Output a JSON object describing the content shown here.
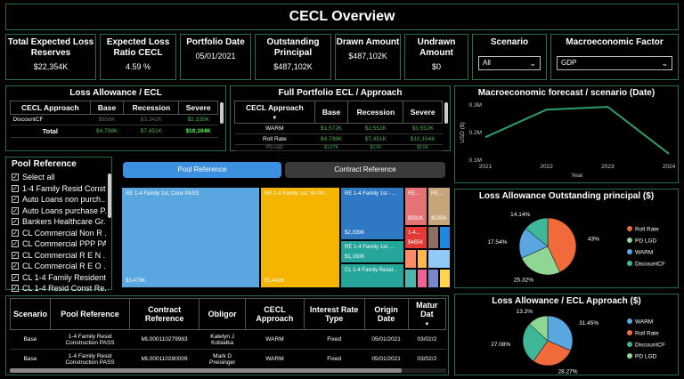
{
  "title": "CECL Overview",
  "kpis": [
    {
      "label": "Total Expected Loss Reserves",
      "value": "$22,354K"
    },
    {
      "label": "Expected Loss Ratio CECL",
      "value": "4.59 %"
    },
    {
      "label": "Portfolio Date",
      "value": "05/01/2021"
    },
    {
      "label": "Outstanding Principal",
      "value": "$487,102K"
    },
    {
      "label": "Drawn Amount",
      "value": "$487,102K"
    },
    {
      "label": "Undrawn Amount",
      "value": "$0"
    }
  ],
  "slicers": {
    "scenario": {
      "label": "Scenario",
      "selected": "All"
    },
    "macro": {
      "label": "Macroeconomic Factor",
      "selected": "GDP"
    }
  },
  "loss_allowance": {
    "title": "Loss Allowance / ECL",
    "headers": [
      "CECL Approach",
      "Base",
      "Recession",
      "Severe"
    ],
    "rows": [
      [
        "DiscountCF",
        "$656K",
        "$3,342K",
        "$2,155K"
      ],
      [
        "Total",
        "$4,798K",
        "$7,451K",
        "$10,104K"
      ]
    ]
  },
  "full_portfolio": {
    "title": "Full Portfolio ECL / Approach",
    "headers": [
      "CECL Approach",
      "Base",
      "Recession",
      "Severe"
    ],
    "rows": [
      [
        "WARM",
        "$1,572K",
        "$2,552K",
        "$3,552K"
      ],
      [
        "Roll Rate",
        "$4,798K",
        "$7,451K",
        "$10,104K"
      ],
      [
        "PD LGD",
        "$1,57K",
        "$2,5K",
        "$3,5K"
      ]
    ]
  },
  "macro_chart": {
    "title": "Macroeconomic forecast / scenario (Date)",
    "chart_data": {
      "type": "line",
      "x": [
        2021,
        2022,
        2023,
        2024
      ],
      "values": [
        0.18,
        0.28,
        0.29,
        0.12
      ],
      "yticks": [
        "0.3M",
        "0.2M",
        "0.1M"
      ],
      "ylim": [
        0.1,
        0.3
      ],
      "xlabel": "Year",
      "ylabel": "USD ($)"
    }
  },
  "pool": {
    "title": "Pool Reference",
    "items": [
      "Select all",
      "1-4 Family Resid Const...",
      "Auto Loans non purch...",
      "Auto Loans purchase P...",
      "Bankers Healthcare Gr...",
      "CL Commercial Non R ...",
      "CL Commercial PPP PA...",
      "CL Commercial R E N ...",
      "CL Commercial R E O ...",
      "CL 1-4 Family Resident...",
      "CL 1-4 Resid Const Re..."
    ]
  },
  "tabs": {
    "pool": "Pool Reference",
    "contract": "Contract Reference"
  },
  "treemap": {
    "blocks": [
      {
        "label": "RE 1-4 Family 1st, Conv PASS",
        "value": "$3,479K",
        "color": "#5aa6e0"
      },
      {
        "label": "RE 1-4 Family 1st, VA PA...",
        "value": "$1,442K",
        "color": "#f4b400"
      },
      {
        "label": "RE 1-4 Family 1st - ...",
        "value": "$2,339K",
        "color": "#2f78c4"
      },
      {
        "label": "RE 1-4 Family 1st-...",
        "value": "$1,160K",
        "color": "#26a69a"
      },
      {
        "label": "CL 1-4 Family Resid...",
        "value": "",
        "color": "#26a69a"
      },
      {
        "label": "RE...",
        "value": "$592K",
        "color": "#e57373"
      },
      {
        "label": "RE...",
        "value": "$535K",
        "color": "#c6a57a"
      },
      {
        "label": "1-4...",
        "value": "$465K",
        "color": "#e53935"
      }
    ]
  },
  "pie1": {
    "title": "Loss Allowance Outstanding principal ($)",
    "chart_data": {
      "type": "pie",
      "categories": [
        "Roll Rate",
        "PD LGD",
        "WARM",
        "DiscountCF"
      ],
      "values": [
        43,
        25.32,
        17.54,
        14.14
      ],
      "labels": [
        "43%",
        "25.32%",
        "17.54%",
        "14.14%"
      ],
      "colors": [
        "#f06a3c",
        "#8fd694",
        "#5aa6e0",
        "#3fb89a"
      ]
    }
  },
  "pie2": {
    "title": "Loss Allowance / ECL Approach ($)",
    "chart_data": {
      "type": "pie",
      "categories": [
        "WARM",
        "Roll Rate",
        "DiscountCF",
        "PD LGD"
      ],
      "values": [
        31.45,
        28.27,
        27.08,
        13.2
      ],
      "labels": [
        "31.45%",
        "28.27%",
        "27.08%",
        "13.2%"
      ],
      "colors": [
        "#5aa6e0",
        "#f06a3c",
        "#3fb89a",
        "#8fd694"
      ]
    }
  },
  "contracts": {
    "headers": [
      "Scenario",
      "Pool Reference",
      "Contract Reference",
      "Obligor",
      "CECL Approach",
      "Interest Rate Type",
      "Origin Date",
      "Matur Dat"
    ],
    "rows": [
      [
        "Base",
        "1-4 Family Resid Construction PASS",
        "ML000110279983",
        "Katelyn J Kobialka",
        "WARM",
        "Fixed",
        "05/01/2021",
        "03/02/2"
      ],
      [
        "Base",
        "1-4 Family Resid Construction PASS",
        "ML000110280009",
        "Mark D Preisinger",
        "WARM",
        "Fixed",
        "05/01/2021",
        "03/02/2"
      ]
    ]
  }
}
